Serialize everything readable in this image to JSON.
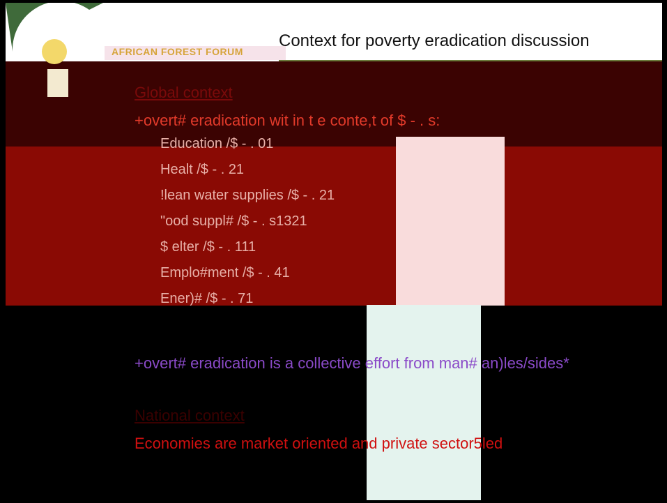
{
  "header": {
    "title": "Context for poverty eradication discussion",
    "logo_text": "AFRICAN FOREST FORUM"
  },
  "global": {
    "heading": "Global context",
    "intro": "+overt# eradication wit  in t  e conte,t of $ - . s:",
    "items": [
      "Education /$ - . 01",
      "Healt  /$ - . 21",
      "!lean water supplies /$ - . 21",
      "\"ood suppl# /$ - . s1321",
      "$  elter /$ - . 111",
      "Emplo#ment /$ - . 41",
      "Ener)# /$ - . 71"
    ],
    "note": "+overt# eradication is a collective effort from man# an)les/sides*"
  },
  "national": {
    "heading": "National context",
    "text": "Economies are market oriented and private sector5led"
  }
}
